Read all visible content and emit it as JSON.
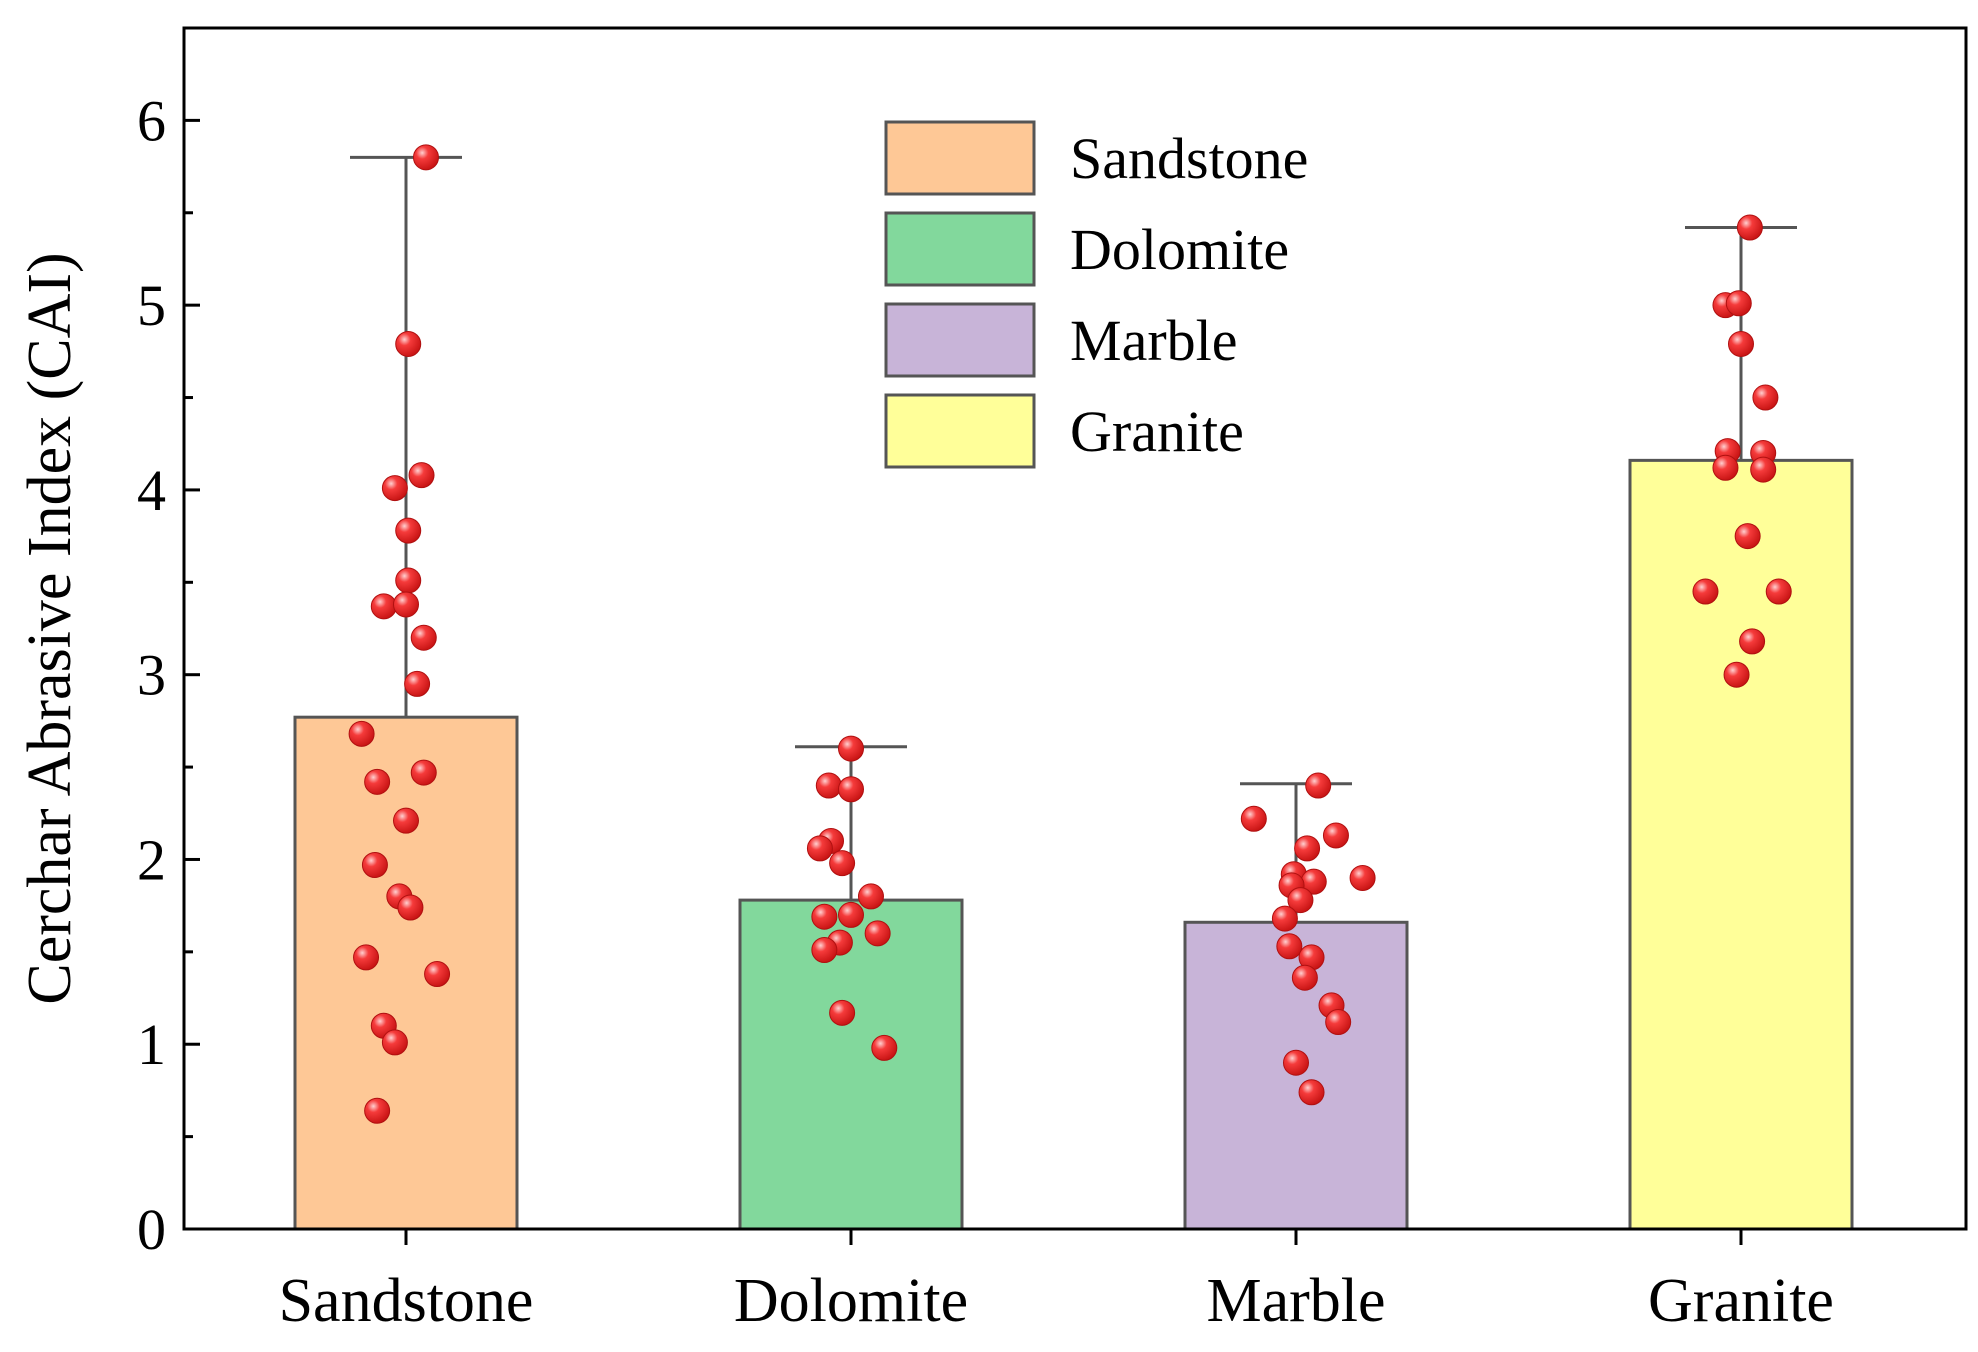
{
  "chart_data": {
    "type": "bar",
    "title": "",
    "xlabel": "",
    "ylabel": "Cerchar Abrasive Index (CAI)",
    "ylim": [
      0,
      6.5
    ],
    "yticks": [
      0,
      1,
      2,
      3,
      4,
      5,
      6
    ],
    "legend_position": "top-center",
    "grid": false,
    "categories": [
      "Sandstone",
      "Dolomite",
      "Marble",
      "Granite"
    ],
    "colors": [
      "#FEC896",
      "#82D89C",
      "#C8B4D8",
      "#FFFF99"
    ],
    "edge_color": "#555555",
    "point_color": "#E82020",
    "values": [
      2.77,
      1.78,
      1.66,
      4.16
    ],
    "error_upper": [
      5.8,
      2.61,
      2.41,
      5.42
    ],
    "points": [
      [
        {
          "dx": 0.09,
          "y": 5.8
        },
        {
          "dx": 0.01,
          "y": 4.79
        },
        {
          "dx": 0.07,
          "y": 4.08
        },
        {
          "dx": -0.05,
          "y": 4.01
        },
        {
          "dx": 0.01,
          "y": 3.78
        },
        {
          "dx": 0.01,
          "y": 3.51
        },
        {
          "dx": -0.1,
          "y": 3.37
        },
        {
          "dx": 0.0,
          "y": 3.38
        },
        {
          "dx": 0.08,
          "y": 3.2
        },
        {
          "dx": 0.05,
          "y": 2.95
        },
        {
          "dx": -0.2,
          "y": 2.68
        },
        {
          "dx": 0.08,
          "y": 2.47
        },
        {
          "dx": -0.13,
          "y": 2.42
        },
        {
          "dx": 0.0,
          "y": 2.21
        },
        {
          "dx": -0.14,
          "y": 1.97
        },
        {
          "dx": -0.03,
          "y": 1.8
        },
        {
          "dx": 0.02,
          "y": 1.74
        },
        {
          "dx": -0.18,
          "y": 1.47
        },
        {
          "dx": 0.14,
          "y": 1.38
        },
        {
          "dx": -0.1,
          "y": 1.1
        },
        {
          "dx": -0.05,
          "y": 1.01
        },
        {
          "dx": -0.13,
          "y": 0.64
        }
      ],
      [
        {
          "dx": 0.0,
          "y": 2.6
        },
        {
          "dx": -0.1,
          "y": 2.4
        },
        {
          "dx": 0.0,
          "y": 2.38
        },
        {
          "dx": -0.09,
          "y": 2.1
        },
        {
          "dx": -0.14,
          "y": 2.06
        },
        {
          "dx": -0.04,
          "y": 1.98
        },
        {
          "dx": 0.09,
          "y": 1.8
        },
        {
          "dx": 0.0,
          "y": 1.7
        },
        {
          "dx": -0.12,
          "y": 1.69
        },
        {
          "dx": 0.12,
          "y": 1.6
        },
        {
          "dx": -0.05,
          "y": 1.55
        },
        {
          "dx": -0.12,
          "y": 1.51
        },
        {
          "dx": -0.04,
          "y": 1.17
        },
        {
          "dx": 0.15,
          "y": 0.98
        }
      ],
      [
        {
          "dx": 0.1,
          "y": 2.4
        },
        {
          "dx": -0.19,
          "y": 2.22
        },
        {
          "dx": 0.18,
          "y": 2.13
        },
        {
          "dx": 0.05,
          "y": 2.06
        },
        {
          "dx": -0.01,
          "y": 1.92
        },
        {
          "dx": 0.08,
          "y": 1.88
        },
        {
          "dx": -0.02,
          "y": 1.86
        },
        {
          "dx": 0.3,
          "y": 1.9
        },
        {
          "dx": 0.02,
          "y": 1.78
        },
        {
          "dx": -0.05,
          "y": 1.68
        },
        {
          "dx": -0.03,
          "y": 1.53
        },
        {
          "dx": 0.07,
          "y": 1.47
        },
        {
          "dx": 0.04,
          "y": 1.36
        },
        {
          "dx": 0.16,
          "y": 1.21
        },
        {
          "dx": 0.19,
          "y": 1.12
        },
        {
          "dx": 0.0,
          "y": 0.9
        },
        {
          "dx": 0.07,
          "y": 0.74
        }
      ],
      [
        {
          "dx": 0.04,
          "y": 5.42
        },
        {
          "dx": -0.07,
          "y": 5.0
        },
        {
          "dx": -0.01,
          "y": 5.01
        },
        {
          "dx": 0.0,
          "y": 4.79
        },
        {
          "dx": 0.11,
          "y": 4.5
        },
        {
          "dx": -0.06,
          "y": 4.21
        },
        {
          "dx": 0.1,
          "y": 4.2
        },
        {
          "dx": -0.07,
          "y": 4.12
        },
        {
          "dx": 0.1,
          "y": 4.11
        },
        {
          "dx": 0.03,
          "y": 3.75
        },
        {
          "dx": -0.16,
          "y": 3.45
        },
        {
          "dx": 0.17,
          "y": 3.45
        },
        {
          "dx": 0.05,
          "y": 3.18
        },
        {
          "dx": -0.02,
          "y": 3.0
        }
      ]
    ]
  }
}
